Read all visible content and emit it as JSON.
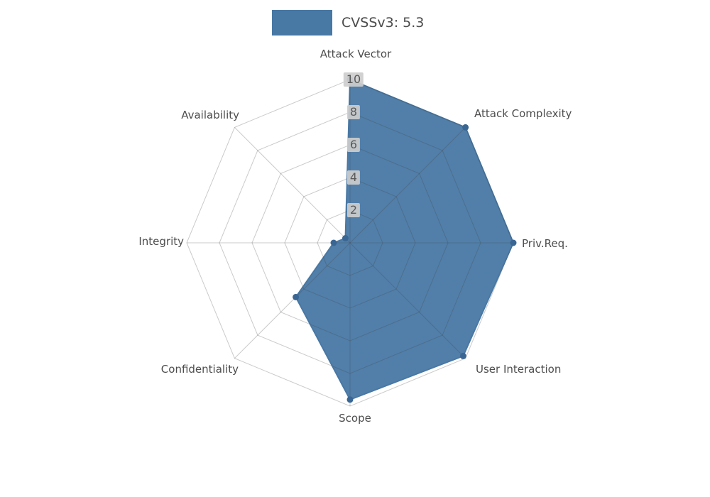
{
  "legend": {
    "label": "CVSSv3: 5.3"
  },
  "chart_data": {
    "type": "radar",
    "title": "",
    "legend_label": "CVSSv3: 5.3",
    "categories": [
      "Attack Vector",
      "Attack Complexity",
      "Priv.Req.",
      "User Interaction",
      "Scope",
      "Confidentiality",
      "Integrity",
      "Availability"
    ],
    "series": [
      {
        "name": "CVSSv3: 5.3",
        "values": [
          10,
          10,
          10,
          9.8,
          9.6,
          4.7,
          1.0,
          0.4
        ]
      }
    ],
    "ticks": [
      "2",
      "4",
      "6",
      "8",
      "10"
    ],
    "tick_values": [
      2,
      4,
      6,
      8,
      10
    ],
    "rmax": 10,
    "layout": {
      "legend_position": "top-center",
      "grid": "on",
      "axis_start": "top",
      "direction": "clockwise"
    },
    "colors": {
      "fill": "#4878a4",
      "marker": "#3a6694",
      "grid": "rgba(70,70,70,0.28)",
      "label": "#4d4d4d",
      "tick_bg": "#cdcdcd",
      "tick_text": "#5a5a5a"
    }
  }
}
